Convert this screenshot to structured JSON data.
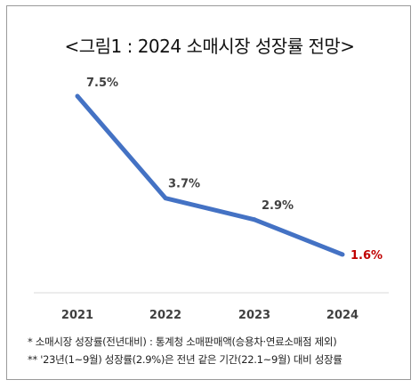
{
  "title": "<그림1 : 2024 소매시장 성장률 전망>",
  "chart_data": {
    "type": "line",
    "categories": [
      "2021",
      "2022",
      "2023",
      "2024"
    ],
    "series": [
      {
        "values": [
          7.5,
          3.7,
          2.9,
          1.6
        ],
        "labels": [
          "7.5%",
          "3.7%",
          "2.9%",
          "1.6%"
        ],
        "color": "#4472C4"
      }
    ],
    "highlight_label_color": "#C00000",
    "highlight_index": 3,
    "grid": false,
    "legend": "none"
  },
  "notes": [
    "* 소매시장 성장률(전년대비) : 통계청 소매판매액(승용차·연료소매점 제외)",
    "** '23년(1~9월) 성장률(2.9%)은 전년 같은 기간(22.1~9월) 대비 성장률"
  ]
}
